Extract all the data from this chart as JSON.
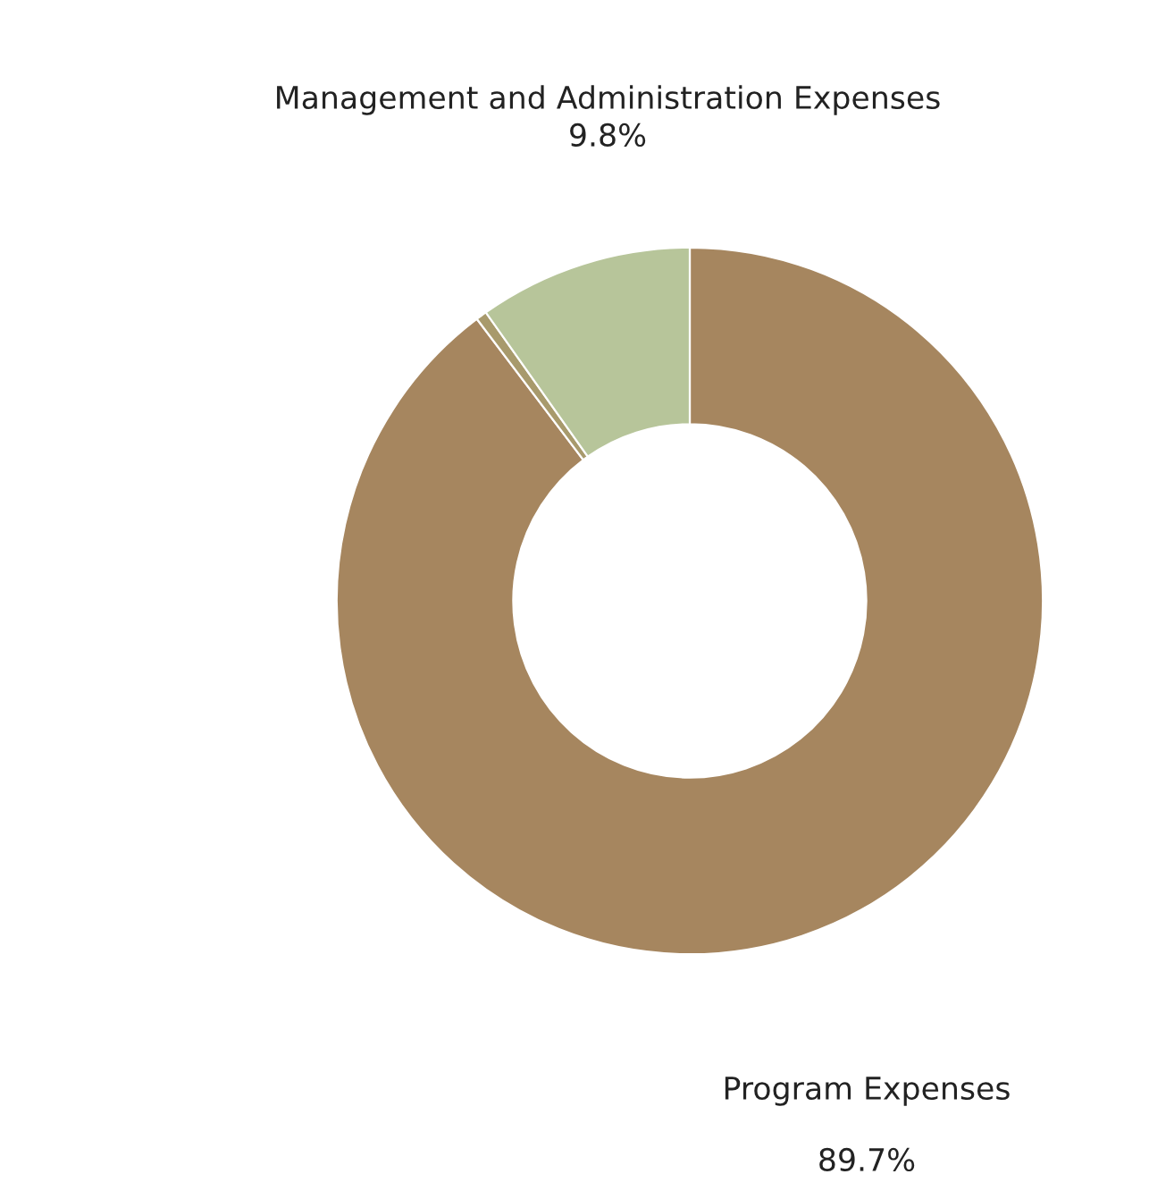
{
  "chart_data": {
    "type": "donut",
    "categories": [
      "Program Expenses",
      null,
      "Management and Administration Expenses"
    ],
    "values": [
      89.7,
      0.5,
      9.8
    ],
    "value_labels": [
      "89.7%",
      null,
      "9.8%"
    ],
    "colors": [
      "#a6865f",
      "#a89a6c",
      "#b7c59a"
    ],
    "legend": false
  }
}
